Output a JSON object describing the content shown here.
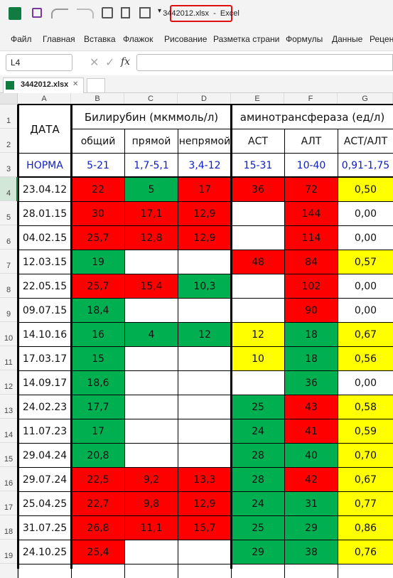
{
  "toolbar": {
    "title": "3442012.xlsx  -  Excel"
  },
  "menu": [
    "Файл",
    "Главная",
    "Вставка",
    "Флажок",
    "Рисование",
    "Разметка страни",
    "Формулы",
    "Данные",
    "Рецен"
  ],
  "formula_bar": {
    "name_box": "L4",
    "fx": "fx"
  },
  "sheet_tab": "3442012.xlsx",
  "column_headers": [
    "A",
    "B",
    "C",
    "D",
    "E",
    "F",
    "G"
  ],
  "row_headers": [
    1,
    2,
    3,
    4,
    5,
    6,
    7,
    8,
    9,
    10,
    11,
    12,
    13,
    14,
    15,
    16,
    17,
    18,
    19
  ],
  "table": {
    "header": {
      "date": "ДАТА",
      "bilirubin": "Билирубин (мкммоль/л)",
      "transaminase": "аминотрансфераза (ед/л)",
      "sub": [
        "общий",
        "прямой",
        "непрямой",
        "АСТ",
        "АЛТ",
        "АСТ/АЛТ"
      ]
    },
    "norm": [
      "НОРМА",
      "5-21",
      "1,7-5,1",
      "3,4-12",
      "15-31",
      "10-40",
      "0,91-1,75"
    ],
    "rows": [
      {
        "cells": [
          "23.04.12",
          "22",
          "5",
          "17",
          "36",
          "72",
          "0,50"
        ],
        "fills": [
          null,
          "#ff0000",
          "#00b050",
          "#ff0000",
          "#ff0000",
          "#ff0000",
          "#ffff00"
        ]
      },
      {
        "cells": [
          "28.01.15",
          "30",
          "17,1",
          "12,9",
          null,
          "144",
          "0,00"
        ],
        "fills": [
          null,
          "#ff0000",
          "#ff0000",
          "#ff0000",
          null,
          "#ff0000",
          null
        ]
      },
      {
        "cells": [
          "04.02.15",
          "25,7",
          "12,8",
          "12,9",
          null,
          "114",
          "0,00"
        ],
        "fills": [
          null,
          "#ff0000",
          "#ff0000",
          "#ff0000",
          null,
          "#ff0000",
          null
        ]
      },
      {
        "cells": [
          "12.03.15",
          "19",
          null,
          null,
          "48",
          "84",
          "0,57"
        ],
        "fills": [
          null,
          "#00b050",
          null,
          null,
          "#ff0000",
          "#ff0000",
          "#ffff00"
        ]
      },
      {
        "cells": [
          "22.05.15",
          "25,7",
          "15,4",
          "10,3",
          null,
          "102",
          "0,00"
        ],
        "fills": [
          null,
          "#ff0000",
          "#ff0000",
          "#00b050",
          null,
          "#ff0000",
          null
        ]
      },
      {
        "cells": [
          "09.07.15",
          "18,4",
          null,
          null,
          null,
          "90",
          "0,00"
        ],
        "fills": [
          null,
          "#00b050",
          null,
          null,
          null,
          "#ff0000",
          null
        ]
      },
      {
        "cells": [
          "14.10.16",
          "16",
          "4",
          "12",
          "12",
          "18",
          "0,67"
        ],
        "fills": [
          null,
          "#00b050",
          "#00b050",
          "#00b050",
          "#ffff00",
          "#00b050",
          "#ffff00"
        ]
      },
      {
        "cells": [
          "17.03.17",
          "15",
          null,
          null,
          "10",
          "18",
          "0,56"
        ],
        "fills": [
          null,
          "#00b050",
          null,
          null,
          "#ffff00",
          "#00b050",
          "#ffff00"
        ]
      },
      {
        "cells": [
          "14.09.17",
          "18,6",
          null,
          null,
          null,
          "36",
          "0,00"
        ],
        "fills": [
          null,
          "#00b050",
          null,
          null,
          null,
          "#00b050",
          null
        ]
      },
      {
        "cells": [
          "24.02.23",
          "17,7",
          null,
          null,
          "25",
          "43",
          "0,58"
        ],
        "fills": [
          null,
          "#00b050",
          null,
          null,
          "#00b050",
          "#ff0000",
          "#ffff00"
        ]
      },
      {
        "cells": [
          "11.07.23",
          "17",
          null,
          null,
          "24",
          "41",
          "0,59"
        ],
        "fills": [
          null,
          "#00b050",
          null,
          null,
          "#00b050",
          "#ff0000",
          "#ffff00"
        ]
      },
      {
        "cells": [
          "29.04.24",
          "20,8",
          null,
          null,
          "28",
          "40",
          "0,70"
        ],
        "fills": [
          null,
          "#00b050",
          null,
          null,
          "#00b050",
          "#00b050",
          "#ffff00"
        ]
      },
      {
        "cells": [
          "29.07.24",
          "22,5",
          "9,2",
          "13,3",
          "28",
          "42",
          "0,67"
        ],
        "fills": [
          null,
          "#ff0000",
          "#ff0000",
          "#ff0000",
          "#00b050",
          "#ff0000",
          "#ffff00"
        ]
      },
      {
        "cells": [
          "25.04.25",
          "22,7",
          "9,8",
          "12,9",
          "24",
          "31",
          "0,77"
        ],
        "fills": [
          null,
          "#ff0000",
          "#ff0000",
          "#ff0000",
          "#00b050",
          "#00b050",
          "#ffff00"
        ]
      },
      {
        "cells": [
          "31.07.25",
          "26,8",
          "11,1",
          "15,7",
          "25",
          "29",
          "0,86"
        ],
        "fills": [
          null,
          "#ff0000",
          "#ff0000",
          "#ff0000",
          "#00b050",
          "#00b050",
          "#ffff00"
        ]
      },
      {
        "cells": [
          "24.10.25",
          "25,4",
          null,
          null,
          "29",
          "38",
          "0,76"
        ],
        "fills": [
          null,
          "#ff0000",
          null,
          null,
          "#00b050",
          "#00b050",
          "#ffff00"
        ]
      }
    ]
  }
}
